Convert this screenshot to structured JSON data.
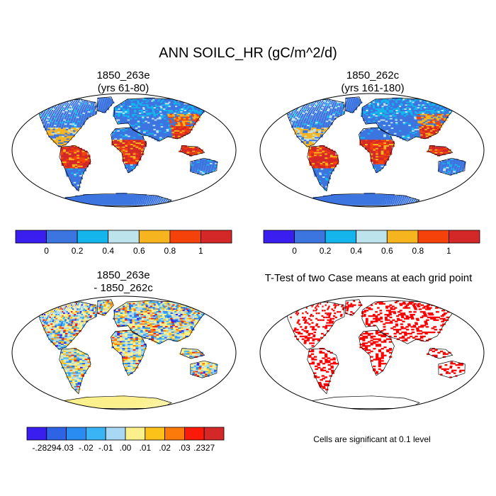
{
  "title": "ANN SOILC_HR (gC/m^2/d)",
  "panels": [
    {
      "title_line1": "1850_263e",
      "title_line2": "(yrs 61-80)"
    },
    {
      "title_line1": "1850_262c",
      "title_line2": "(yrs 161-180)"
    },
    {
      "title_line1": "1850_263e",
      "title_line2": "- 1850_262c"
    },
    {
      "title_line1": "T-Test of two Case means at each grid point",
      "title_line2": ""
    }
  ],
  "significance_note": "Cells are significant at 0.1 level",
  "chart_data": [
    {
      "type": "heatmap",
      "title": "1850_263e (yrs 61-80)",
      "colorbar": {
        "colors": [
          "#3a1ef0",
          "#3c74e0",
          "#14b4ec",
          "#bde4ec",
          "#f6b41e",
          "#f4420a",
          "#d42828"
        ],
        "tick_labels": [
          "0",
          "0.2",
          "0.4",
          "0.6",
          "0.8",
          "1"
        ]
      }
    },
    {
      "type": "heatmap",
      "title": "1850_262c (yrs 161-180)",
      "colorbar": {
        "colors": [
          "#3a1ef0",
          "#3c74e0",
          "#14b4ec",
          "#bde4ec",
          "#f6b41e",
          "#f4420a",
          "#d42828"
        ],
        "tick_labels": [
          "0",
          "0.2",
          "0.4",
          "0.6",
          "0.8",
          "1"
        ]
      }
    },
    {
      "type": "heatmap",
      "title": "1850_263e - 1850_262c",
      "colorbar": {
        "colors": [
          "#3a1ef0",
          "#2f63e6",
          "#2a8cf0",
          "#3ab4f4",
          "#a8d8f4",
          "#fbf08c",
          "#fcc21a",
          "#fc7a0a",
          "#fa1a0a",
          "#d42828"
        ],
        "tick_labels": [
          "-.28294",
          "-.03",
          "-.02",
          "-.01",
          ".00",
          ".01",
          ".02",
          ".03",
          ".2327"
        ]
      }
    },
    {
      "type": "heatmap",
      "title": "T-Test of two Case means at each grid point",
      "significance_color": "#ff0000"
    }
  ]
}
